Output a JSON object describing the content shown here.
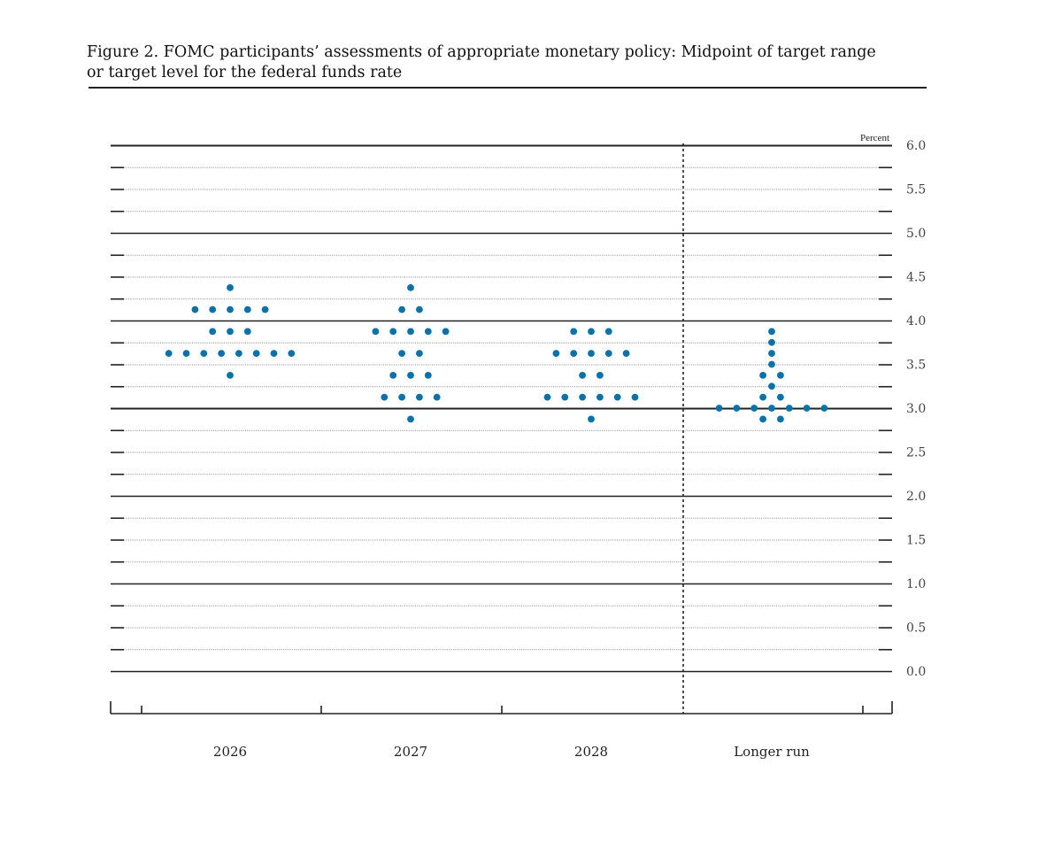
{
  "figure": {
    "title_line1": "Figure 2. FOMC participants’ assessments of appropriate monetary policy: Midpoint of target range",
    "title_line2": "or target level for the federal funds rate"
  },
  "chart_data": {
    "type": "scatter",
    "subtype": "dot-plot",
    "unit_label": "Percent",
    "categories": [
      "2026",
      "2027",
      "2028",
      "Longer run"
    ],
    "ylim": [
      0.0,
      6.0
    ],
    "y_ticks": [
      "6.0",
      "5.5",
      "5.0",
      "4.5",
      "4.0",
      "3.5",
      "3.0",
      "2.5",
      "2.0",
      "1.5",
      "1.0",
      "0.5",
      "0.0"
    ],
    "grid": true,
    "dot_color": "#0a72a8",
    "series": [
      {
        "category": "2026",
        "points": [
          {
            "y": 4.375,
            "count": 1
          },
          {
            "y": 4.125,
            "count": 5
          },
          {
            "y": 3.875,
            "count": 3
          },
          {
            "y": 3.625,
            "count": 8
          },
          {
            "y": 3.375,
            "count": 1
          }
        ]
      },
      {
        "category": "2027",
        "points": [
          {
            "y": 4.375,
            "count": 1
          },
          {
            "y": 4.125,
            "count": 2
          },
          {
            "y": 3.875,
            "count": 5
          },
          {
            "y": 3.625,
            "count": 2
          },
          {
            "y": 3.375,
            "count": 3
          },
          {
            "y": 3.125,
            "count": 4
          },
          {
            "y": 2.875,
            "count": 1
          }
        ]
      },
      {
        "category": "2028",
        "points": [
          {
            "y": 3.875,
            "count": 3
          },
          {
            "y": 3.625,
            "count": 5
          },
          {
            "y": 3.375,
            "count": 2
          },
          {
            "y": 3.125,
            "count": 6
          },
          {
            "y": 2.875,
            "count": 1
          }
        ]
      },
      {
        "category": "Longer run",
        "points": [
          {
            "y": 3.875,
            "count": 1
          },
          {
            "y": 3.75,
            "count": 1
          },
          {
            "y": 3.625,
            "count": 1
          },
          {
            "y": 3.5,
            "count": 1
          },
          {
            "y": 3.375,
            "count": 2
          },
          {
            "y": 3.25,
            "count": 1
          },
          {
            "y": 3.125,
            "count": 2
          },
          {
            "y": 3.0,
            "count": 7
          },
          {
            "y": 2.875,
            "count": 2
          }
        ]
      }
    ]
  }
}
